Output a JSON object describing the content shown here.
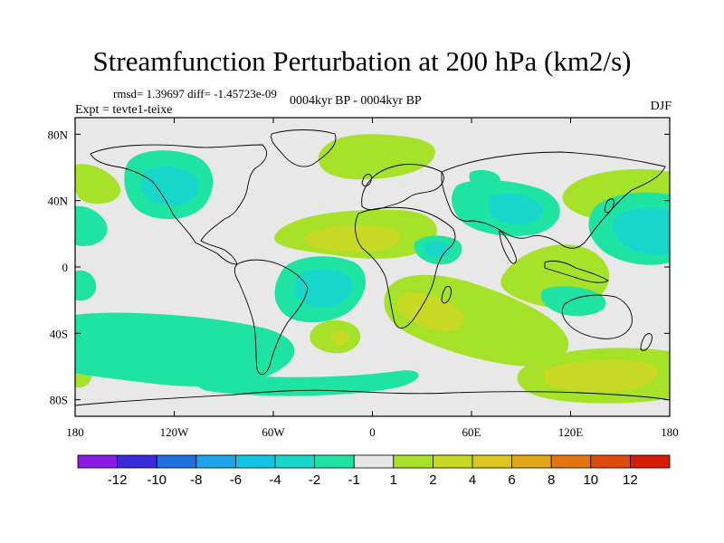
{
  "title": "Streamfunction Perturbation at 200 hPa (km2/s)",
  "stats": "rmsd= 1.39697 diff= -1.45723e-09",
  "expt": "Expt = tevte1-teixe",
  "period": "0004kyr BP - 0004kyr BP",
  "season": "DJF",
  "map": {
    "lon_range": [
      -180,
      180
    ],
    "lat_range": [
      -90,
      90
    ],
    "background": "#e8e8e8",
    "coast_color": "#000000",
    "lon_ticks": [
      {
        "value": -180,
        "label": "180"
      },
      {
        "value": -120,
        "label": "120W"
      },
      {
        "value": -60,
        "label": "60W"
      },
      {
        "value": 0,
        "label": "0"
      },
      {
        "value": 60,
        "label": "60E"
      },
      {
        "value": 120,
        "label": "120E"
      },
      {
        "value": 180,
        "label": "180"
      }
    ],
    "lat_ticks": [
      {
        "value": 80,
        "label": "80N"
      },
      {
        "value": 40,
        "label": "40N"
      },
      {
        "value": 0,
        "label": "0"
      },
      {
        "value": -40,
        "label": "40S"
      },
      {
        "value": -80,
        "label": "80S"
      }
    ]
  },
  "colorbar": {
    "colors": [
      "#8b1ae3",
      "#3a2bd8",
      "#1f6fe0",
      "#1ea3e8",
      "#11c4e6",
      "#16d7c9",
      "#1ee3a2",
      "#e6e6e6",
      "#a6e22a",
      "#c9da24",
      "#dcc71f",
      "#e2a619",
      "#e27512",
      "#dc4a0c",
      "#d41c06"
    ],
    "labels": [
      "-12",
      "-10",
      "-8",
      "-6",
      "-4",
      "-2",
      "-1",
      "1",
      "2",
      "4",
      "6",
      "8",
      "10",
      "12"
    ]
  }
}
